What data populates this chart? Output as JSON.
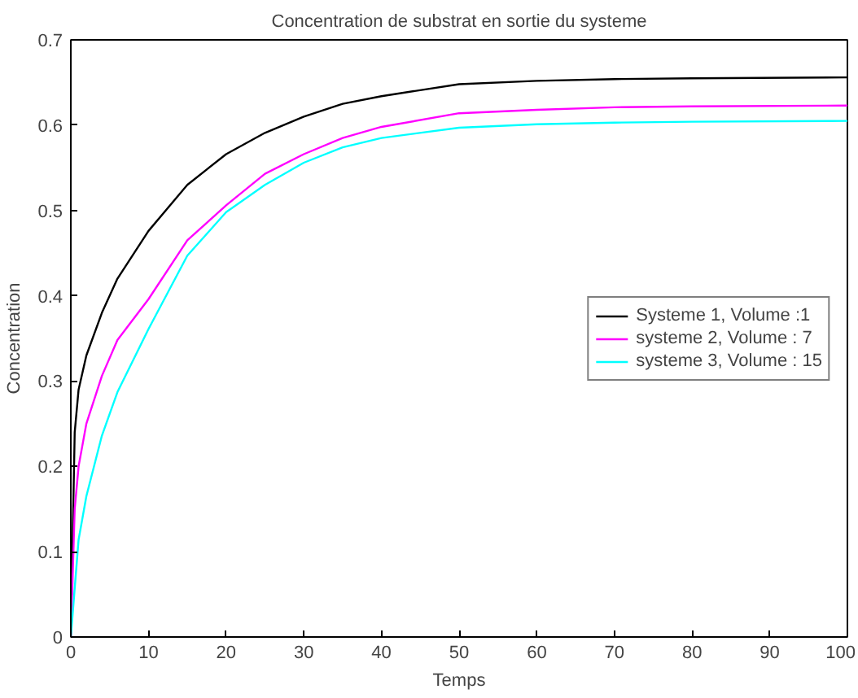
{
  "chart_data": {
    "type": "line",
    "title": "Concentration de substrat en sortie du systeme",
    "xlabel": "Temps",
    "ylabel": "Concentration",
    "xlim": [
      0,
      100
    ],
    "ylim": [
      0,
      0.7
    ],
    "xticks": [
      0,
      10,
      20,
      30,
      40,
      50,
      60,
      70,
      80,
      90,
      100
    ],
    "yticks": [
      0,
      0.1,
      0.2,
      0.3,
      0.4,
      0.5,
      0.6,
      0.7
    ],
    "grid": false,
    "legend": "right",
    "line_style": "solid",
    "series": [
      {
        "name": "Systeme 1, Volume :1",
        "color": "#000000",
        "x": [
          0,
          0.5,
          1,
          2,
          4,
          6,
          10,
          15,
          20,
          25,
          30,
          35,
          40,
          50,
          60,
          70,
          80,
          100
        ],
        "values": [
          0,
          0.24,
          0.29,
          0.33,
          0.38,
          0.42,
          0.476,
          0.53,
          0.566,
          0.591,
          0.61,
          0.625,
          0.634,
          0.648,
          0.652,
          0.654,
          0.655,
          0.656
        ]
      },
      {
        "name": "systeme 2, Volume : 7",
        "color": "#ff00ff",
        "x": [
          0,
          0.5,
          1,
          2,
          4,
          6,
          10,
          15,
          20,
          25,
          30,
          35,
          40,
          50,
          60,
          70,
          80,
          100
        ],
        "values": [
          0,
          0.15,
          0.2,
          0.25,
          0.306,
          0.348,
          0.396,
          0.465,
          0.506,
          0.543,
          0.566,
          0.585,
          0.598,
          0.614,
          0.618,
          0.621,
          0.622,
          0.623
        ]
      },
      {
        "name": "systeme 3, Volume : 15",
        "color": "#00ffff",
        "x": [
          0,
          1,
          2,
          4,
          6,
          10,
          15,
          20,
          25,
          30,
          35,
          40,
          50,
          60,
          70,
          80,
          100
        ],
        "values": [
          0,
          0.114,
          0.165,
          0.236,
          0.287,
          0.361,
          0.447,
          0.498,
          0.53,
          0.556,
          0.574,
          0.585,
          0.597,
          0.601,
          0.603,
          0.604,
          0.605
        ]
      }
    ]
  }
}
